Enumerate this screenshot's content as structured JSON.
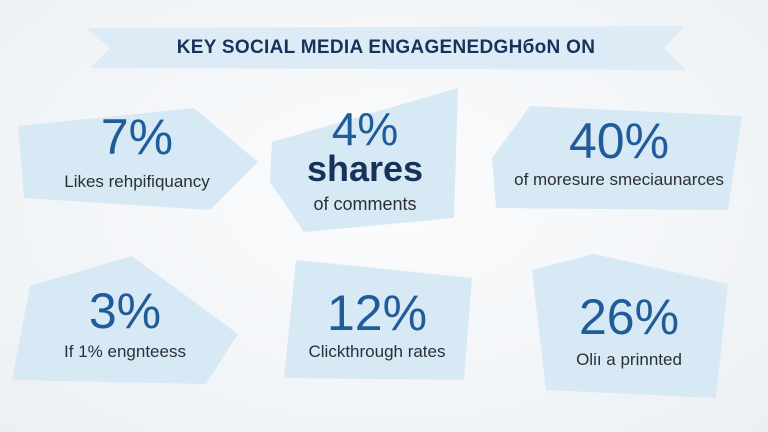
{
  "title": "KEY SOCIAL MEDIA ENGAGENEDGHбоN ON",
  "colors": {
    "banner_fill": "#dcebf5",
    "card_fill": "#d7e9f4",
    "value_blue": "#1f5c99",
    "headline_navy": "#16325a"
  },
  "cards": [
    {
      "value": "7%",
      "label": "Likes rehpifiquancy"
    },
    {
      "value": "4%",
      "headline": "shares",
      "label": "of comments"
    },
    {
      "value": "40%",
      "label": "of moresure smeciaunarces"
    },
    {
      "value": "3%",
      "label": "If 1% engnteess"
    },
    {
      "value": "12%",
      "label": "Clickthrough rates"
    },
    {
      "value": "26%",
      "label": "Oliı a prinnted"
    }
  ]
}
